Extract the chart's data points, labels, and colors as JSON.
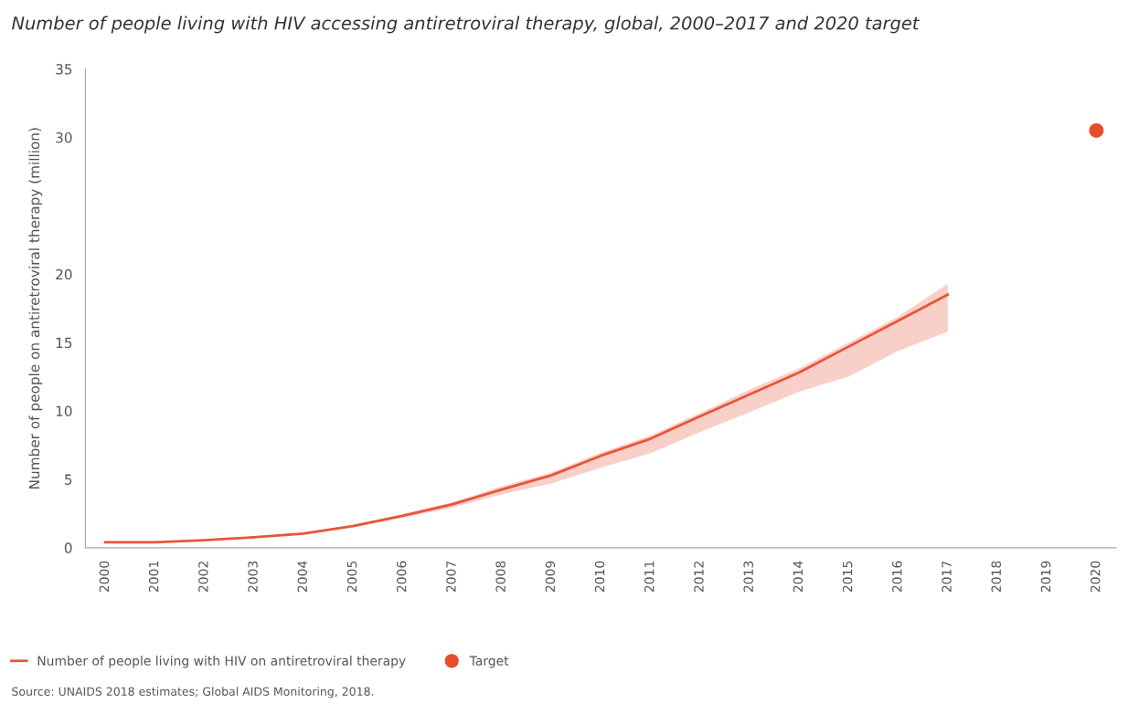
{
  "chart_data": {
    "type": "line",
    "title": "Number of people living with HIV accessing antiretroviral therapy, global, 2000–2017 and 2020 target",
    "ylabel": "Number of people on antiretroviral therapy (million)",
    "categories": [
      "2000",
      "2001",
      "2002",
      "2003",
      "2004",
      "2005",
      "2006",
      "2007",
      "2008",
      "2009",
      "2010",
      "2011",
      "2012",
      "2013",
      "2014",
      "2015",
      "2016",
      "2017",
      "2018",
      "2019",
      "2020"
    ],
    "series": [
      {
        "name": "Number of people living with HIV on antiretroviral therapy",
        "color": "#e8553a",
        "values": [
          0.4,
          0.4,
          0.55,
          0.76,
          1.03,
          1.58,
          2.33,
          3.17,
          4.25,
          5.29,
          6.72,
          7.96,
          9.6,
          11.2,
          12.8,
          14.7,
          16.6,
          18.5,
          null,
          null,
          null
        ],
        "lower": [
          0.35,
          0.35,
          0.5,
          0.7,
          0.97,
          1.5,
          2.2,
          2.93,
          3.9,
          4.7,
          5.85,
          6.9,
          8.45,
          9.9,
          11.4,
          12.5,
          14.4,
          15.8,
          null,
          null,
          null
        ],
        "upper": [
          0.45,
          0.45,
          0.6,
          0.82,
          1.1,
          1.65,
          2.45,
          3.33,
          4.5,
          5.5,
          6.95,
          8.2,
          9.85,
          11.55,
          13.1,
          15.0,
          16.9,
          19.3,
          null,
          null,
          null
        ]
      },
      {
        "name": "Target",
        "type": "scatter",
        "color": "#e44d2e",
        "values": [
          null,
          null,
          null,
          null,
          null,
          null,
          null,
          null,
          null,
          null,
          null,
          null,
          null,
          null,
          null,
          null,
          null,
          null,
          null,
          null,
          30.5
        ],
        "marker": "circle"
      }
    ],
    "ylim": [
      0,
      35
    ],
    "yticks": [
      0,
      5,
      10,
      15,
      20,
      30,
      35
    ],
    "grid": false,
    "legend": "bottom left",
    "annotations": [
      "Source: UNAIDS 2018 estimates; Global AIDS Monitoring, 2018."
    ]
  }
}
